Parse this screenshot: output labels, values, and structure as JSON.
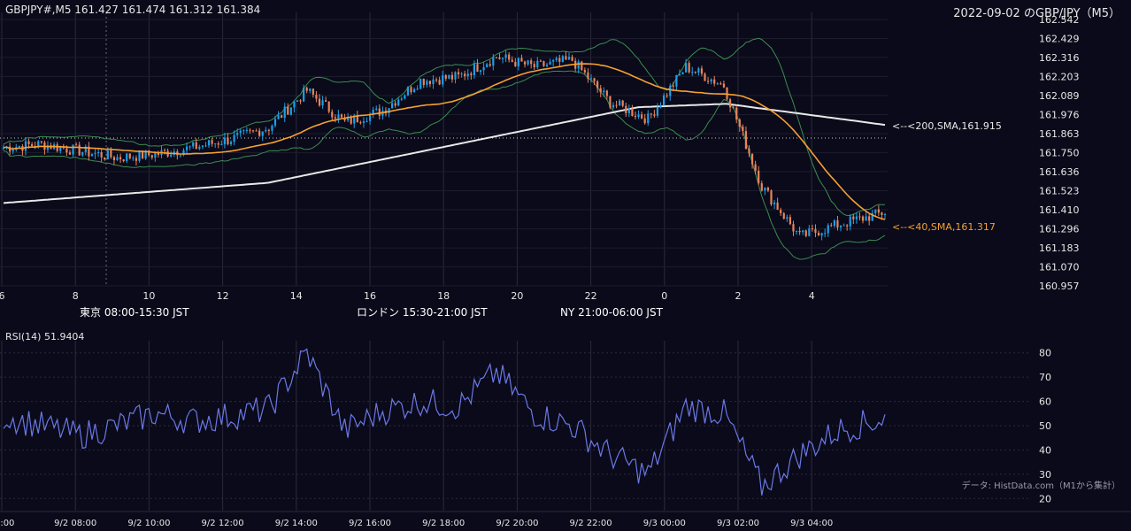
{
  "header": {
    "ohlc": "GBPJPY#,M5 161.427 161.474 161.312 161.384",
    "title": "2022-09-02 のGBP/JPY（M5）"
  },
  "price_axis": [
    "162.542",
    "162.429",
    "162.316",
    "162.203",
    "162.089",
    "161.976",
    "161.863",
    "161.750",
    "161.636",
    "161.523",
    "161.410",
    "161.296",
    "161.183",
    "161.070",
    "160.957"
  ],
  "hour_axis": [
    "6",
    "8",
    "10",
    "12",
    "14",
    "16",
    "18",
    "20",
    "22",
    "0",
    "2",
    "4"
  ],
  "annotations": {
    "sma200": "<--<200,SMA,161.915",
    "sma40": "<--<40,SMA,161.317"
  },
  "sessions": [
    {
      "label": "東京 08:00-15:30 JST",
      "color": "#234a7a"
    },
    {
      "label": "ロンドン 15:30-21:00 JST",
      "color": "#7a5514"
    },
    {
      "label": "NY 21:00-06:00 JST",
      "color": "#265c3c"
    }
  ],
  "rsi": {
    "label": "RSI(14) 51.9404",
    "axis": [
      "80",
      "70",
      "60",
      "50",
      "40",
      "30",
      "20"
    ]
  },
  "time_axis": [
    "06:00",
    "9/2 08:00",
    "9/2 10:00",
    "9/2 12:00",
    "9/2 14:00",
    "9/2 16:00",
    "9/2 18:00",
    "9/2 20:00",
    "9/2 22:00",
    "9/3 00:00",
    "9/3 02:00",
    "9/3 04:00"
  ],
  "source": "データ: HistData.com（M1から集計）",
  "colors": {
    "bull": "#1e9ee6",
    "bear": "#e8845a",
    "sma200": "#e8e8e8",
    "sma40": "#f5a030",
    "bollinger": "#3c8c50",
    "rsi": "#6b78e6",
    "grid": "#2a2a3c"
  },
  "chart_data": [
    {
      "type": "candlestick",
      "title": "2022-09-02 のGBP/JPY（M5）",
      "timeframe": "M5",
      "x": [
        "9/2 06:00",
        "9/2 07:00",
        "9/2 08:00",
        "9/2 09:00",
        "9/2 10:00",
        "9/2 11:00",
        "9/2 12:00",
        "9/2 13:00",
        "9/2 14:00",
        "9/2 15:00",
        "9/2 16:00",
        "9/2 17:00",
        "9/2 18:00",
        "9/2 19:00",
        "9/2 20:00",
        "9/2 21:00",
        "9/2 22:00",
        "9/2 23:00",
        "9/3 00:00",
        "9/3 01:00",
        "9/3 02:00",
        "9/3 03:00",
        "9/3 04:00",
        "9/3 05:00"
      ],
      "close": [
        161.78,
        161.8,
        161.76,
        161.72,
        161.74,
        161.78,
        161.83,
        161.9,
        162.12,
        161.93,
        162.0,
        162.18,
        162.2,
        162.32,
        162.26,
        162.3,
        162.05,
        161.95,
        162.26,
        162.15,
        161.55,
        161.25,
        161.32,
        161.38
      ],
      "ylim": [
        160.957,
        162.542
      ],
      "overlays": [
        {
          "name": "200,SMA",
          "last": 161.915
        },
        {
          "name": "40,SMA",
          "last": 161.317
        },
        {
          "name": "Bollinger Bands"
        }
      ]
    },
    {
      "type": "line",
      "title": "RSI(14) 51.9404",
      "x": [
        "9/2 06:00",
        "9/2 07:00",
        "9/2 08:00",
        "9/2 09:00",
        "9/2 10:00",
        "9/2 11:00",
        "9/2 12:00",
        "9/2 13:00",
        "9/2 14:00",
        "9/2 15:00",
        "9/2 16:00",
        "9/2 17:00",
        "9/2 18:00",
        "9/2 19:00",
        "9/2 20:00",
        "9/2 21:00",
        "9/2 22:00",
        "9/2 23:00",
        "9/3 00:00",
        "9/3 01:00",
        "9/3 02:00",
        "9/3 03:00",
        "9/3 04:00",
        "9/3 05:00"
      ],
      "values": [
        54,
        50,
        46,
        50,
        55,
        52,
        54,
        57,
        80,
        48,
        56,
        60,
        58,
        72,
        55,
        50,
        38,
        30,
        58,
        55,
        25,
        38,
        48,
        52
      ],
      "ylim": [
        15,
        85
      ]
    }
  ]
}
